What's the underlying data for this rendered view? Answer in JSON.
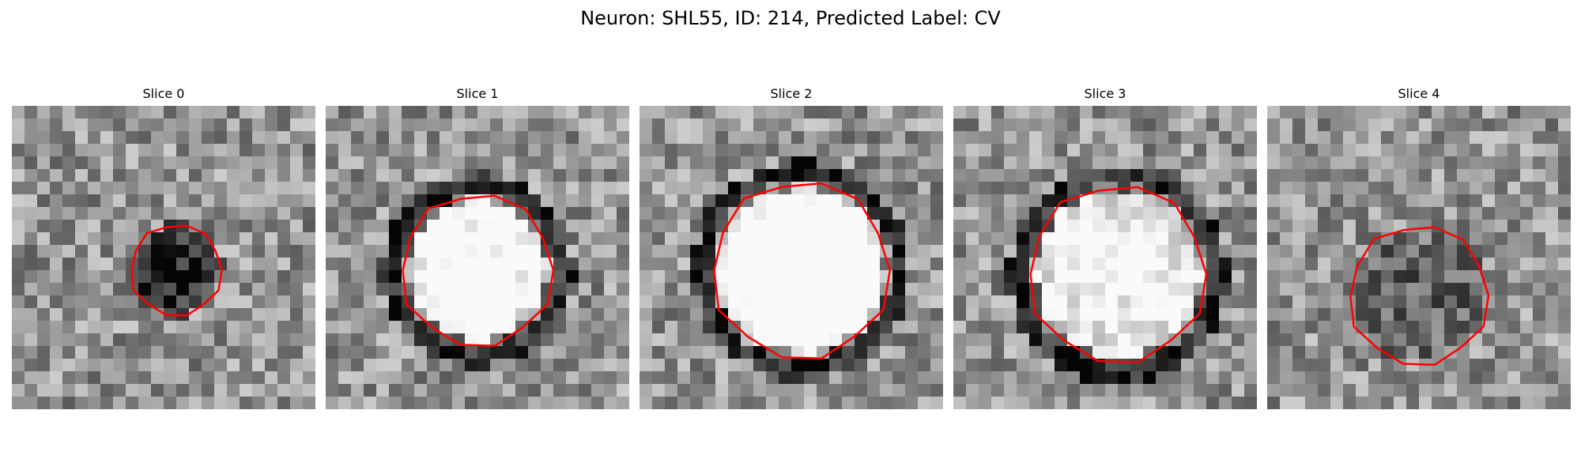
{
  "figure": {
    "title": "Neuron: SHL55, ID: 214, Predicted Label: CV"
  },
  "contour_color": "#ff0000",
  "colormap": "gray",
  "grid_size": 24,
  "panels": [
    {
      "title": "Slice 0",
      "blob": {
        "cx": 13,
        "cy": 13,
        "r": 3.6,
        "contrast": -0.45
      }
    },
    {
      "title": "Slice 1",
      "blob": {
        "cx": 12.0,
        "cy": 13.0,
        "r": 6.0,
        "contrast": 0.55,
        "ring": true
      }
    },
    {
      "title": "Slice 2",
      "blob": {
        "cx": 12.8,
        "cy": 13.0,
        "r": 7.0,
        "contrast": 0.7,
        "ring": true
      }
    },
    {
      "title": "Slice 3",
      "blob": {
        "cx": 13.0,
        "cy": 13.3,
        "r": 7.0,
        "contrast": 0.45,
        "ring": true
      }
    },
    {
      "title": "Slice 4",
      "blob": {
        "cx": 12.0,
        "cy": 15.0,
        "r": 5.5,
        "contrast": -0.2
      }
    }
  ]
}
